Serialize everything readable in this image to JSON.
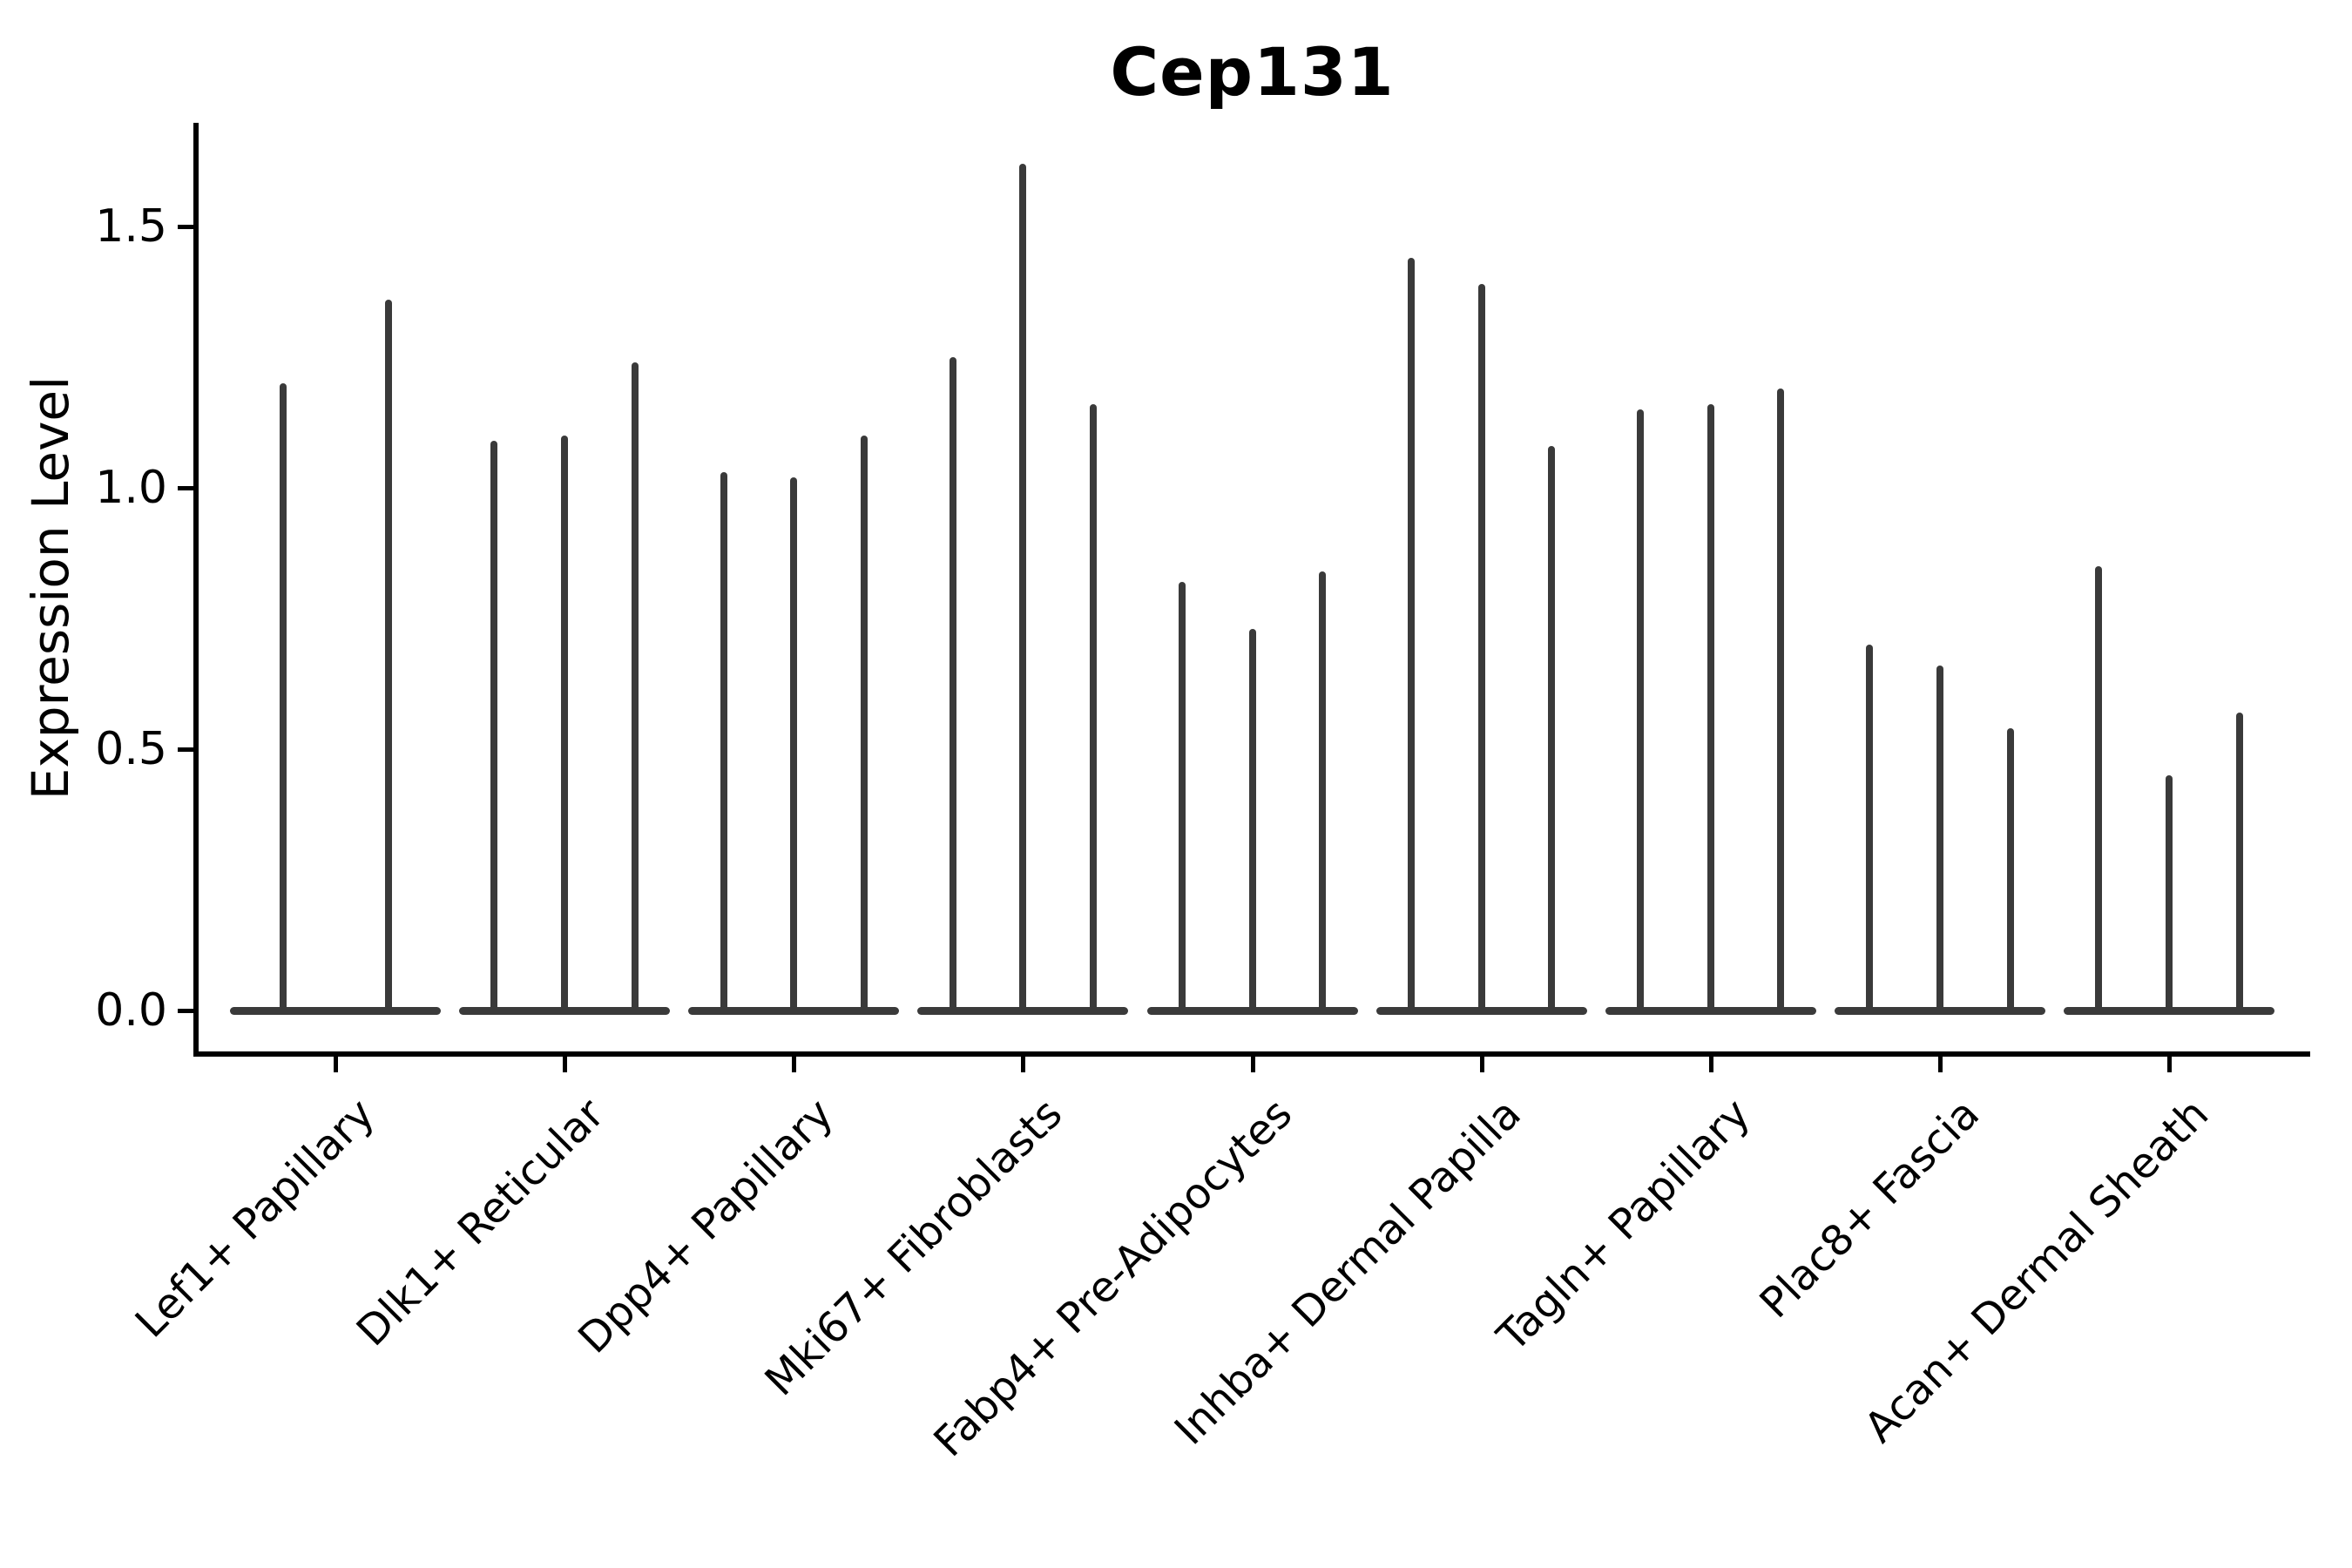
{
  "figure": {
    "background": "#ffffff"
  },
  "chart_data": {
    "type": "violin",
    "title": "Cep131",
    "xlabel": "",
    "ylabel": "Expression Level",
    "grid": false,
    "legend": "none",
    "ylim": [
      -0.08,
      1.7
    ],
    "yticks": [
      {
        "value": 0.0,
        "label": "0.0"
      },
      {
        "value": 0.5,
        "label": "0.5"
      },
      {
        "value": 1.0,
        "label": "1.0"
      },
      {
        "value": 1.5,
        "label": "1.5"
      }
    ],
    "x_tick_rotation_degrees": 45,
    "categories": [
      "Lef1+ Papillary",
      "Dlk1+ Reticular",
      "Dpp4+ Papillary",
      "Mki67+ Fibroblasts",
      "Fabp4+ Pre-Adipocytes",
      "Inhba+ Dermal Papilla",
      "Tagln+ Papillary",
      "Plac8+ Fascia",
      "Acan+ Dermal Sheath"
    ],
    "groups": [
      {
        "category": "Lef1+ Papillary",
        "violin_min": 0,
        "violin_max_values": [
          1.2,
          1.36
        ]
      },
      {
        "category": "Dlk1+ Reticular",
        "violin_min": 0,
        "violin_max_values": [
          1.09,
          1.1,
          1.24
        ]
      },
      {
        "category": "Dpp4+ Papillary",
        "violin_min": 0,
        "violin_max_values": [
          1.03,
          1.02,
          1.1
        ]
      },
      {
        "category": "Mki67+ Fibroblasts",
        "violin_min": 0,
        "violin_max_values": [
          1.25,
          1.62,
          1.16
        ]
      },
      {
        "category": "Fabp4+ Pre-Adipocytes",
        "violin_min": 0,
        "violin_max_values": [
          0.82,
          0.73,
          0.84
        ]
      },
      {
        "category": "Inhba+ Dermal Papilla",
        "violin_min": 0,
        "violin_max_values": [
          1.44,
          1.39,
          1.08
        ]
      },
      {
        "category": "Tagln+ Papillary",
        "violin_min": 0,
        "violin_max_values": [
          1.15,
          1.16,
          1.19
        ]
      },
      {
        "category": "Plac8+ Fascia",
        "violin_min": 0,
        "violin_max_values": [
          0.7,
          0.66,
          0.54
        ]
      },
      {
        "category": "Acan+ Dermal Sheath",
        "violin_min": 0,
        "violin_max_values": [
          0.85,
          0.45,
          0.57
        ]
      }
    ],
    "colors": {
      "violin": "#3a3a3a",
      "axis": "#000000",
      "text": "#000000"
    }
  }
}
